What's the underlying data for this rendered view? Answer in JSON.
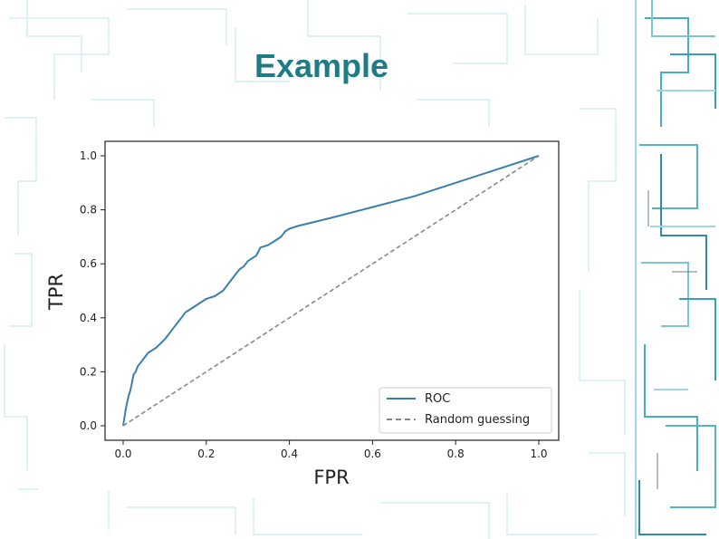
{
  "slide": {
    "title": "Example",
    "title_color": "#1f7c86",
    "decoration_color": "#8fd3e0"
  },
  "chart_data": {
    "type": "line",
    "title": "",
    "xlabel": "FPR",
    "ylabel": "TPR",
    "xlim": [
      0.0,
      1.0
    ],
    "ylim": [
      0.0,
      1.0
    ],
    "xticks": [
      "0.0",
      "0.2",
      "0.4",
      "0.6",
      "0.8",
      "1.0"
    ],
    "yticks": [
      "0.0",
      "0.2",
      "0.4",
      "0.6",
      "0.8",
      "1.0"
    ],
    "grid": false,
    "legend_position": "lower-right",
    "series": [
      {
        "name": "ROC",
        "color": "#3a7fb0",
        "style": "solid",
        "x": [
          0.0,
          0.003,
          0.006,
          0.01,
          0.013,
          0.017,
          0.02,
          0.025,
          0.03,
          0.035,
          0.04,
          0.05,
          0.06,
          0.07,
          0.08,
          0.1,
          0.11,
          0.12,
          0.13,
          0.14,
          0.15,
          0.16,
          0.17,
          0.18,
          0.19,
          0.2,
          0.22,
          0.23,
          0.24,
          0.25,
          0.26,
          0.27,
          0.28,
          0.29,
          0.3,
          0.31,
          0.32,
          0.33,
          0.35,
          0.36,
          0.37,
          0.38,
          0.39,
          0.4,
          0.42,
          0.5,
          0.6,
          0.7,
          0.8,
          0.9,
          1.0
        ],
        "y": [
          0.0,
          0.03,
          0.06,
          0.09,
          0.11,
          0.13,
          0.15,
          0.19,
          0.2,
          0.22,
          0.23,
          0.25,
          0.27,
          0.28,
          0.29,
          0.32,
          0.34,
          0.36,
          0.38,
          0.4,
          0.42,
          0.43,
          0.44,
          0.45,
          0.46,
          0.47,
          0.48,
          0.49,
          0.5,
          0.52,
          0.54,
          0.56,
          0.58,
          0.59,
          0.61,
          0.62,
          0.63,
          0.66,
          0.67,
          0.68,
          0.69,
          0.7,
          0.72,
          0.73,
          0.74,
          0.77,
          0.81,
          0.85,
          0.9,
          0.95,
          1.0
        ]
      },
      {
        "name": "Random guessing",
        "color": "#888888",
        "style": "dashed",
        "x": [
          0.0,
          1.0
        ],
        "y": [
          0.0,
          1.0
        ]
      }
    ]
  }
}
